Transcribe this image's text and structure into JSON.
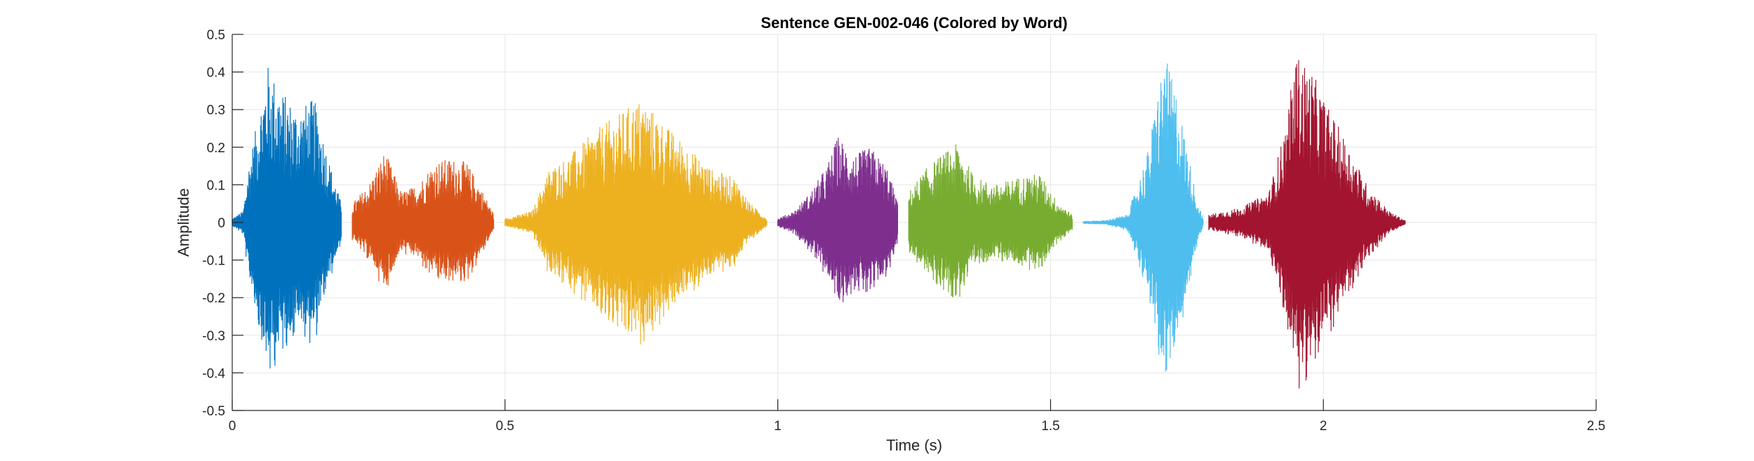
{
  "chart_data": {
    "type": "line",
    "title": "Sentence GEN-002-046 (Colored by Word)",
    "xlabel": "Time (s)",
    "ylabel": "Amplitude",
    "xlim": [
      0,
      2.5
    ],
    "ylim": [
      -0.5,
      0.5
    ],
    "xticks": [
      0,
      0.5,
      1,
      1.5,
      2,
      2.5
    ],
    "xtick_labels": [
      "0",
      "0.5",
      "1",
      "1.5",
      "2",
      "2.5"
    ],
    "yticks": [
      -0.5,
      -0.4,
      -0.3,
      -0.2,
      -0.1,
      0,
      0.1,
      0.2,
      0.3,
      0.4,
      0.5
    ],
    "ytick_labels": [
      "-0.5",
      "-0.4",
      "-0.3",
      "-0.2",
      "-0.1",
      "0",
      "0.1",
      "0.2",
      "0.3",
      "0.4",
      "0.5"
    ],
    "grid": true,
    "series": [
      {
        "color": "#0072BD",
        "t_start": 0.0,
        "t_end": 0.2,
        "envelope": [
          [
            0.0,
            0.01
          ],
          [
            0.02,
            0.03
          ],
          [
            0.03,
            0.15
          ],
          [
            0.05,
            0.3
          ],
          [
            0.065,
            0.42
          ],
          [
            0.09,
            0.35
          ],
          [
            0.12,
            0.3
          ],
          [
            0.15,
            0.33
          ],
          [
            0.18,
            0.15
          ],
          [
            0.2,
            0.05
          ]
        ]
      },
      {
        "color": "#D95319",
        "t_start": 0.22,
        "t_end": 0.48,
        "envelope": [
          [
            0.22,
            0.05
          ],
          [
            0.25,
            0.1
          ],
          [
            0.28,
            0.19
          ],
          [
            0.31,
            0.08
          ],
          [
            0.34,
            0.1
          ],
          [
            0.37,
            0.16
          ],
          [
            0.4,
            0.17
          ],
          [
            0.43,
            0.16
          ],
          [
            0.46,
            0.08
          ],
          [
            0.48,
            0.02
          ]
        ]
      },
      {
        "color": "#EDB120",
        "t_start": 0.5,
        "t_end": 0.98,
        "envelope": [
          [
            0.5,
            0.01
          ],
          [
            0.55,
            0.03
          ],
          [
            0.58,
            0.14
          ],
          [
            0.62,
            0.18
          ],
          [
            0.67,
            0.25
          ],
          [
            0.72,
            0.3
          ],
          [
            0.75,
            0.33
          ],
          [
            0.8,
            0.25
          ],
          [
            0.85,
            0.18
          ],
          [
            0.88,
            0.14
          ],
          [
            0.92,
            0.12
          ],
          [
            0.95,
            0.05
          ],
          [
            0.98,
            0.01
          ]
        ]
      },
      {
        "color": "#7E2F8E",
        "t_start": 1.0,
        "t_end": 1.22,
        "envelope": [
          [
            1.0,
            0.01
          ],
          [
            1.03,
            0.03
          ],
          [
            1.06,
            0.08
          ],
          [
            1.09,
            0.15
          ],
          [
            1.11,
            0.23
          ],
          [
            1.14,
            0.18
          ],
          [
            1.17,
            0.2
          ],
          [
            1.2,
            0.15
          ],
          [
            1.22,
            0.05
          ]
        ]
      },
      {
        "color": "#77AC30",
        "t_start": 1.24,
        "t_end": 1.54,
        "envelope": [
          [
            1.24,
            0.08
          ],
          [
            1.27,
            0.14
          ],
          [
            1.3,
            0.18
          ],
          [
            1.33,
            0.21
          ],
          [
            1.36,
            0.12
          ],
          [
            1.4,
            0.1
          ],
          [
            1.44,
            0.12
          ],
          [
            1.48,
            0.13
          ],
          [
            1.51,
            0.06
          ],
          [
            1.54,
            0.02
          ]
        ]
      },
      {
        "color": "#4DBEEE",
        "t_start": 1.56,
        "t_end": 1.78,
        "envelope": [
          [
            1.56,
            0.003
          ],
          [
            1.6,
            0.005
          ],
          [
            1.64,
            0.02
          ],
          [
            1.66,
            0.1
          ],
          [
            1.68,
            0.2
          ],
          [
            1.7,
            0.38
          ],
          [
            1.71,
            0.44
          ],
          [
            1.73,
            0.35
          ],
          [
            1.75,
            0.2
          ],
          [
            1.77,
            0.05
          ],
          [
            1.78,
            0.01
          ]
        ]
      },
      {
        "color": "#A2142F",
        "t_start": 1.79,
        "t_end": 2.15,
        "envelope": [
          [
            1.79,
            0.02
          ],
          [
            1.85,
            0.04
          ],
          [
            1.9,
            0.08
          ],
          [
            1.93,
            0.25
          ],
          [
            1.95,
            0.45
          ],
          [
            1.98,
            0.4
          ],
          [
            2.0,
            0.33
          ],
          [
            2.04,
            0.22
          ],
          [
            2.08,
            0.1
          ],
          [
            2.12,
            0.03
          ],
          [
            2.15,
            0.005
          ]
        ]
      }
    ]
  }
}
